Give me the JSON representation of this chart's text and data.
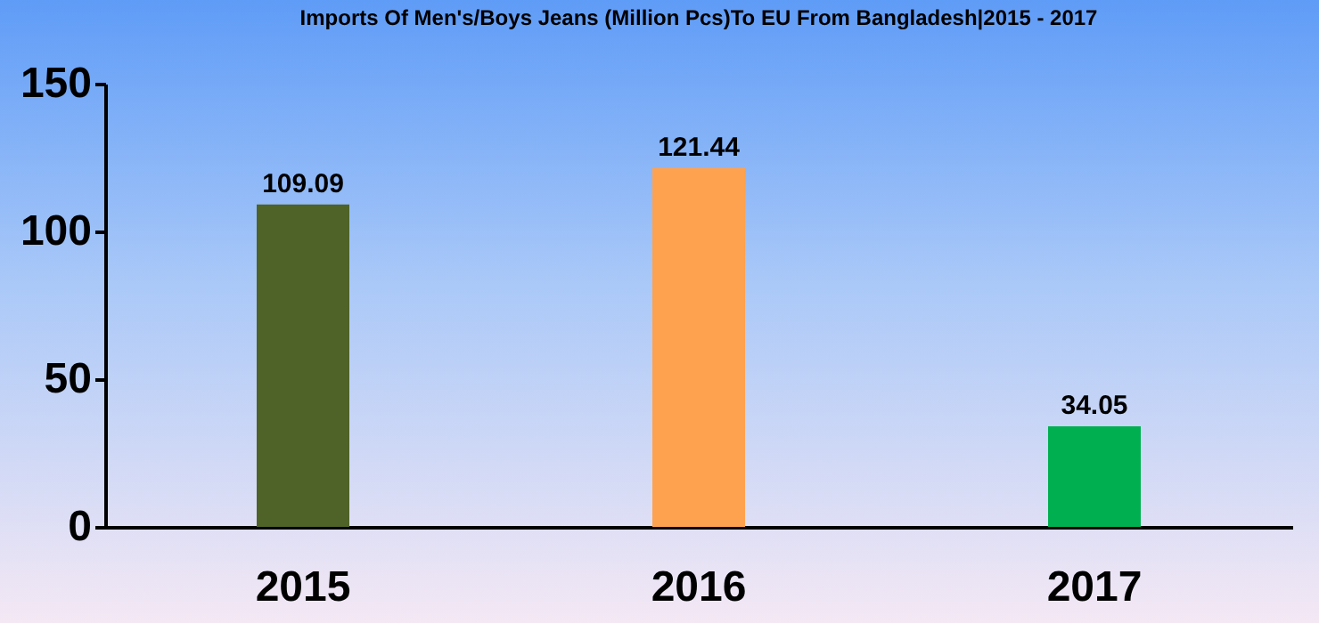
{
  "chart_data": {
    "type": "bar",
    "title": "Imports Of Men's/Boys Jeans (Million Pcs)To EU From Bangladesh|2015 - 2017",
    "categories": [
      "2015",
      "2016",
      "2017"
    ],
    "values": [
      109.09,
      121.44,
      34.05
    ],
    "colors": [
      "#4f6228",
      "#ffa24f",
      "#00b050"
    ],
    "ylim": [
      0,
      150
    ],
    "yticks": [
      0,
      50,
      100,
      150
    ],
    "grid": false,
    "data_labels": true
  }
}
